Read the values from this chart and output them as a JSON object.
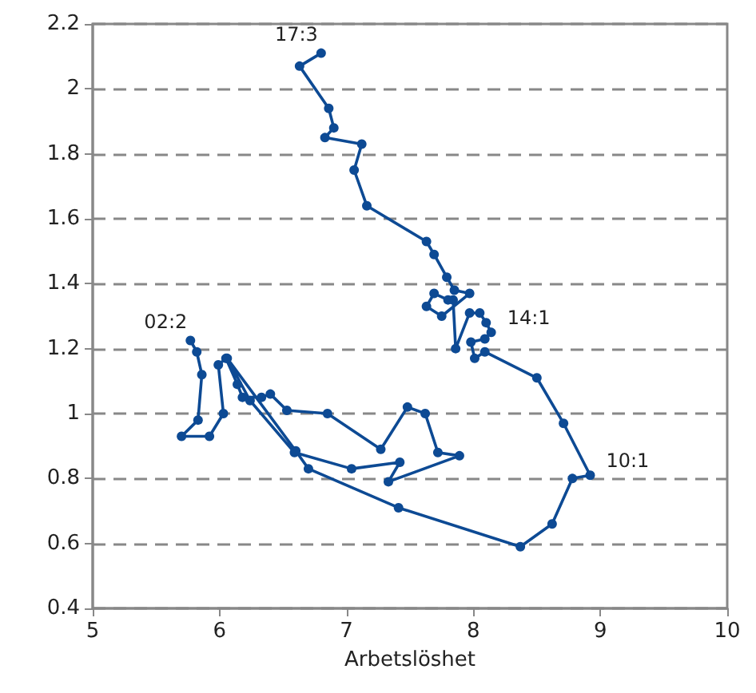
{
  "chart_data": {
    "type": "line",
    "xlabel": "Arbetslöshet",
    "series": [
      {
        "color": "#0d4a94",
        "x": [
          5.77,
          5.82,
          5.86,
          5.83,
          5.7,
          5.92,
          6.03,
          5.99,
          6.05,
          6.14,
          6.18,
          6.33,
          6.4,
          6.53,
          6.85,
          7.27,
          7.48,
          7.62,
          7.72,
          7.89,
          7.33,
          7.42,
          7.04,
          6.59,
          6.24,
          6.06,
          6.6,
          6.7,
          7.41,
          8.37,
          8.62,
          8.78,
          8.92,
          8.71,
          8.5,
          8.09,
          8.01,
          7.98,
          8.09,
          8.14,
          8.1,
          8.05,
          7.97,
          7.86,
          7.84,
          7.8,
          7.69,
          7.63,
          7.75,
          7.97,
          7.85,
          7.79,
          7.69,
          7.63,
          7.16,
          7.06,
          7.12,
          6.83,
          6.9,
          6.86,
          6.63,
          6.8
        ],
        "values": [
          1.225,
          1.19,
          1.12,
          0.98,
          0.93,
          0.93,
          1.0,
          1.15,
          1.17,
          1.09,
          1.05,
          1.05,
          1.06,
          1.01,
          1.0,
          0.89,
          1.02,
          1.0,
          0.88,
          0.87,
          0.79,
          0.85,
          0.83,
          0.88,
          1.04,
          1.17,
          0.885,
          0.83,
          0.71,
          0.59,
          0.66,
          0.8,
          0.81,
          0.97,
          1.11,
          1.19,
          1.17,
          1.22,
          1.23,
          1.25,
          1.28,
          1.31,
          1.31,
          1.2,
          1.35,
          1.35,
          1.37,
          1.33,
          1.3,
          1.37,
          1.38,
          1.42,
          1.49,
          1.53,
          1.64,
          1.75,
          1.83,
          1.85,
          1.88,
          1.94,
          2.07,
          2.11
        ]
      }
    ],
    "annotations": [
      {
        "text": "02:2",
        "x": 5.77,
        "y": 1.225
      },
      {
        "text": "10:1",
        "x": 8.92,
        "y": 0.81
      },
      {
        "text": "14:1",
        "x": 8.14,
        "y": 1.25
      },
      {
        "text": "17:3",
        "x": 6.8,
        "y": 2.11
      }
    ],
    "xlim": [
      5,
      10
    ],
    "xticks": [
      5,
      6,
      7,
      8,
      9,
      10
    ],
    "ylim": [
      0.4,
      2.2
    ],
    "yticks": [
      0.4,
      0.6,
      0.8,
      1.0,
      1.2,
      1.4,
      1.6,
      1.8,
      2.0,
      2.2
    ],
    "grid": "y",
    "marker": "circle",
    "line_style": "solid"
  }
}
